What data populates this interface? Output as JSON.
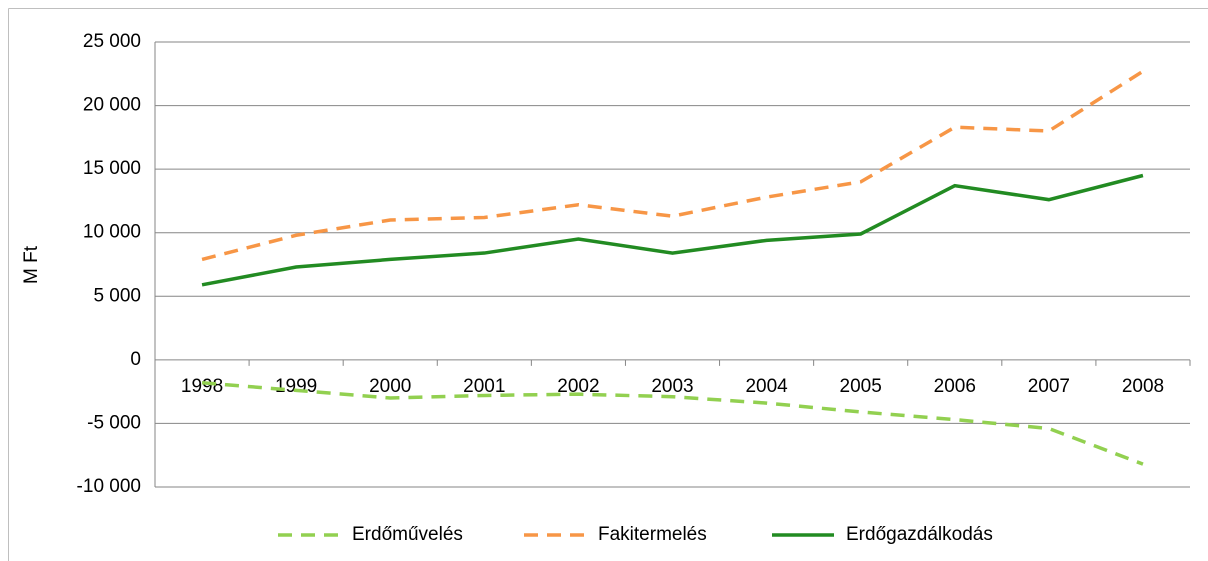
{
  "chart_data": {
    "type": "line",
    "y_label": "M Ft",
    "categories": [
      "1998",
      "1999",
      "2000",
      "2001",
      "2002",
      "2003",
      "2004",
      "2005",
      "2006",
      "2007",
      "2008"
    ],
    "series": [
      {
        "name": "Erdőművelés",
        "color": "#92d050",
        "dash": true,
        "values": [
          -1800,
          -2400,
          -3000,
          -2800,
          -2700,
          -2900,
          -3400,
          -4100,
          -4700,
          -5400,
          -8200
        ]
      },
      {
        "name": "Fakitermelés",
        "color": "#f79646",
        "dash": true,
        "values": [
          7900,
          9800,
          11000,
          11200,
          12200,
          11300,
          12800,
          14000,
          18300,
          18000,
          22700
        ]
      },
      {
        "name": "Erdőgazdálkodás",
        "color": "#228b22",
        "dash": false,
        "values": [
          5900,
          7300,
          7900,
          8400,
          9500,
          8400,
          9400,
          9900,
          13700,
          12600,
          14500
        ]
      }
    ],
    "ylim": [
      -10000,
      25000
    ],
    "yticks": [
      {
        "value": -10000,
        "label": "-10 000"
      },
      {
        "value": -5000,
        "label": "-5 000"
      },
      0,
      {
        "value": 5000,
        "label": "5 000"
      },
      {
        "value": 10000,
        "label": "10 000"
      },
      {
        "value": 15000,
        "label": "15 000"
      },
      {
        "value": 20000,
        "label": "20 000"
      },
      {
        "value": 25000,
        "label": "25 000"
      }
    ],
    "grid": true,
    "legend": "bottom"
  }
}
